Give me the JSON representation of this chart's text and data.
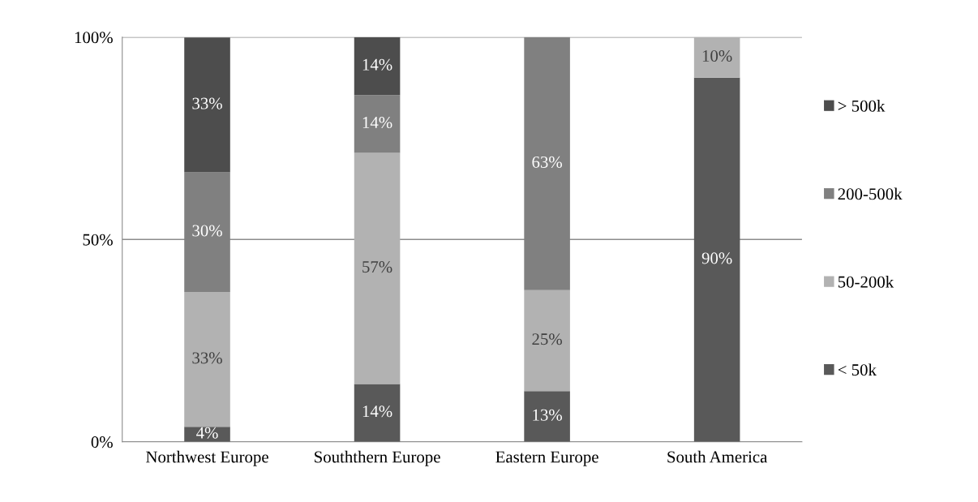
{
  "chart_data": {
    "type": "bar",
    "stacked": true,
    "categories": [
      "Northwest Europe",
      "Souththern Europe",
      "Eastern Europe",
      "South America"
    ],
    "series": [
      {
        "name": "< 50k",
        "color": "#595959",
        "values": [
          3.7,
          14.3,
          12.5,
          90
        ],
        "value_labels": [
          "4%",
          "14%",
          "13%",
          "90%"
        ]
      },
      {
        "name": "50-200k",
        "color": "#b2b2b2",
        "values": [
          33.3,
          57.1,
          25,
          10
        ],
        "value_labels": [
          "33%",
          "57%",
          "25%",
          "10%"
        ]
      },
      {
        "name": "200-500k",
        "color": "#808080",
        "values": [
          29.6,
          14.3,
          62.5,
          0
        ],
        "value_labels": [
          "30%",
          "14%",
          "63%",
          null
        ]
      },
      {
        "name": "> 500k",
        "color": "#4d4d4d",
        "values": [
          33.3,
          14.3,
          0,
          0
        ],
        "value_labels": [
          "33%",
          "14%",
          null,
          null
        ]
      }
    ],
    "ylim": [
      0,
      100
    ],
    "yticks": [
      {
        "value": 0,
        "label": "0%"
      },
      {
        "value": 50,
        "label": "50%"
      },
      {
        "value": 100,
        "label": "100%"
      }
    ],
    "grid": "y",
    "legend": "right"
  }
}
